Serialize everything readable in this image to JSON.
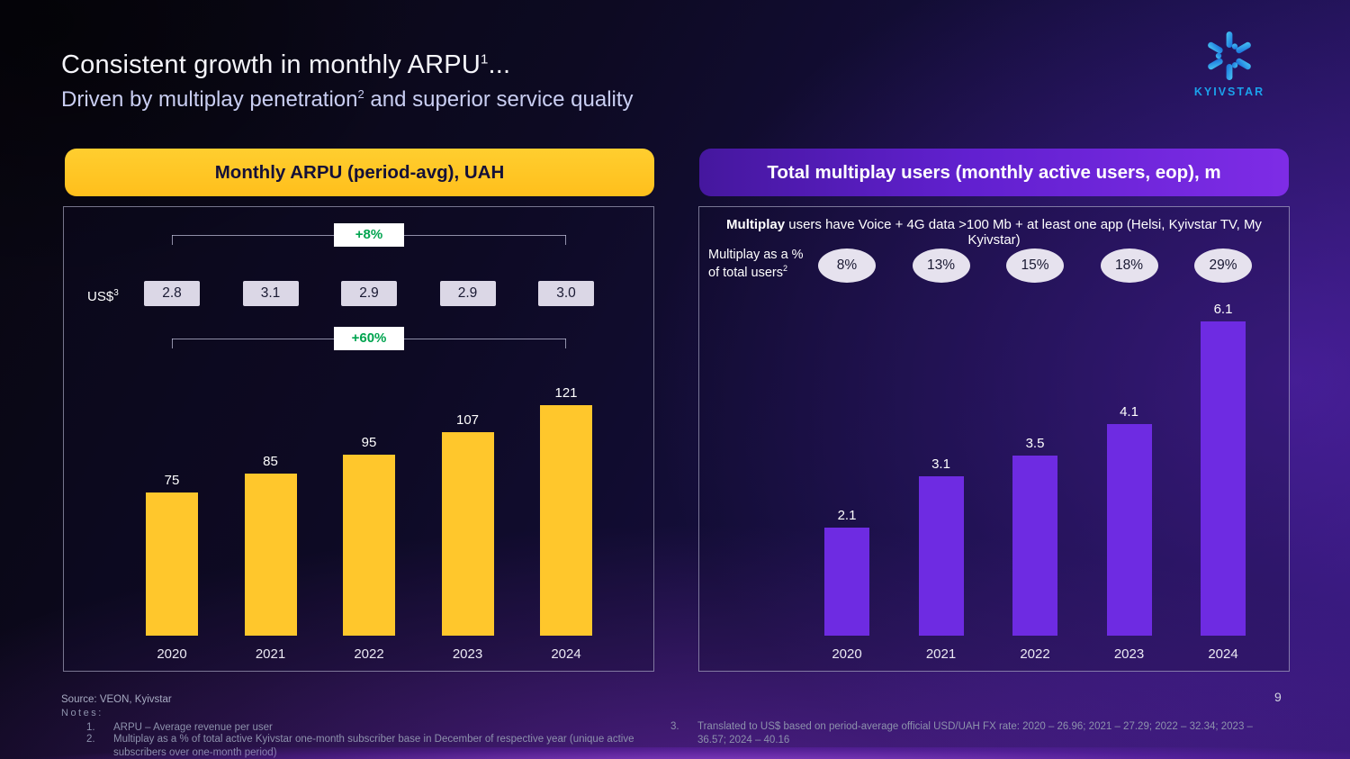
{
  "slide": {
    "title": "Consistent growth in monthly ARPU",
    "title_sup": "1",
    "title_suffix": "...",
    "subtitle_pre": "Driven by multiplay penetration",
    "subtitle_sup": "2",
    "subtitle_post": " and superior service quality",
    "page_number": "9"
  },
  "logo": {
    "brand": "KYIVSTAR",
    "blue": "#1BA2EC"
  },
  "left_panel": {
    "header": "Monthly ARPU (period-avg), UAH",
    "usd_label": "US$",
    "usd_sup": "3"
  },
  "right_panel": {
    "header": "Total multiplay users (monthly active users, eop), m",
    "note_bold": "Multiplay",
    "note_rest": " users have Voice + 4G data >100 Mb + at least one app (Helsi, Kyivstar TV, My Kyivstar)",
    "share_line1": "Multiplay as a %",
    "share_line2": "of total users",
    "share_sup": "2"
  },
  "chart_data": [
    {
      "type": "bar",
      "title": "Monthly ARPU (period-avg), UAH",
      "categories": [
        "2020",
        "2021",
        "2022",
        "2023",
        "2024"
      ],
      "values": [
        75,
        85,
        95,
        107,
        121
      ],
      "bar_color": "#FFC72C",
      "usd_values": [
        "2.8",
        "3.1",
        "2.9",
        "2.9",
        "3.0"
      ],
      "growth_labels": [
        "+8%",
        "+60%"
      ],
      "xlabel": "",
      "ylabel": "",
      "ylim": [
        0,
        130
      ],
      "grid": false,
      "legend": "none"
    },
    {
      "type": "bar",
      "title": "Total multiplay users (monthly active users, eop), m",
      "categories": [
        "2020",
        "2021",
        "2022",
        "2023",
        "2024"
      ],
      "values": [
        2.1,
        3.1,
        3.5,
        4.1,
        6.1
      ],
      "bar_color": "#6E2BE2",
      "share_of_total": [
        "8%",
        "13%",
        "15%",
        "18%",
        "29%"
      ],
      "xlabel": "",
      "ylabel": "",
      "ylim": [
        0,
        6.6
      ],
      "grid": false,
      "legend": "none"
    }
  ],
  "colors": {
    "growth_green": "#00A44F",
    "value_box_bg": "#DBD7E6",
    "oval_bg": "#E6E2EE",
    "header_yellow": "#FFC72C",
    "header_purple": "#6C22DC"
  },
  "footer": {
    "source": "Source: VEON, Kyivstar",
    "notes_label": "Notes:",
    "notes_left": [
      {
        "num": "1.",
        "text": "ARPU – Average revenue per user"
      },
      {
        "num": "2.",
        "text": "Multiplay as a % of total active Kyivstar one-month subscriber base in December of respective year (unique active subscribers over one-month period)"
      }
    ],
    "notes_right": [
      {
        "num": "3.",
        "text": "Translated to US$ based on period-average official USD/UAH FX rate: 2020 – 26.96; 2021 – 27.29; 2022 – 32.34; 2023 – 36.57; 2024 – 40.16"
      }
    ]
  }
}
